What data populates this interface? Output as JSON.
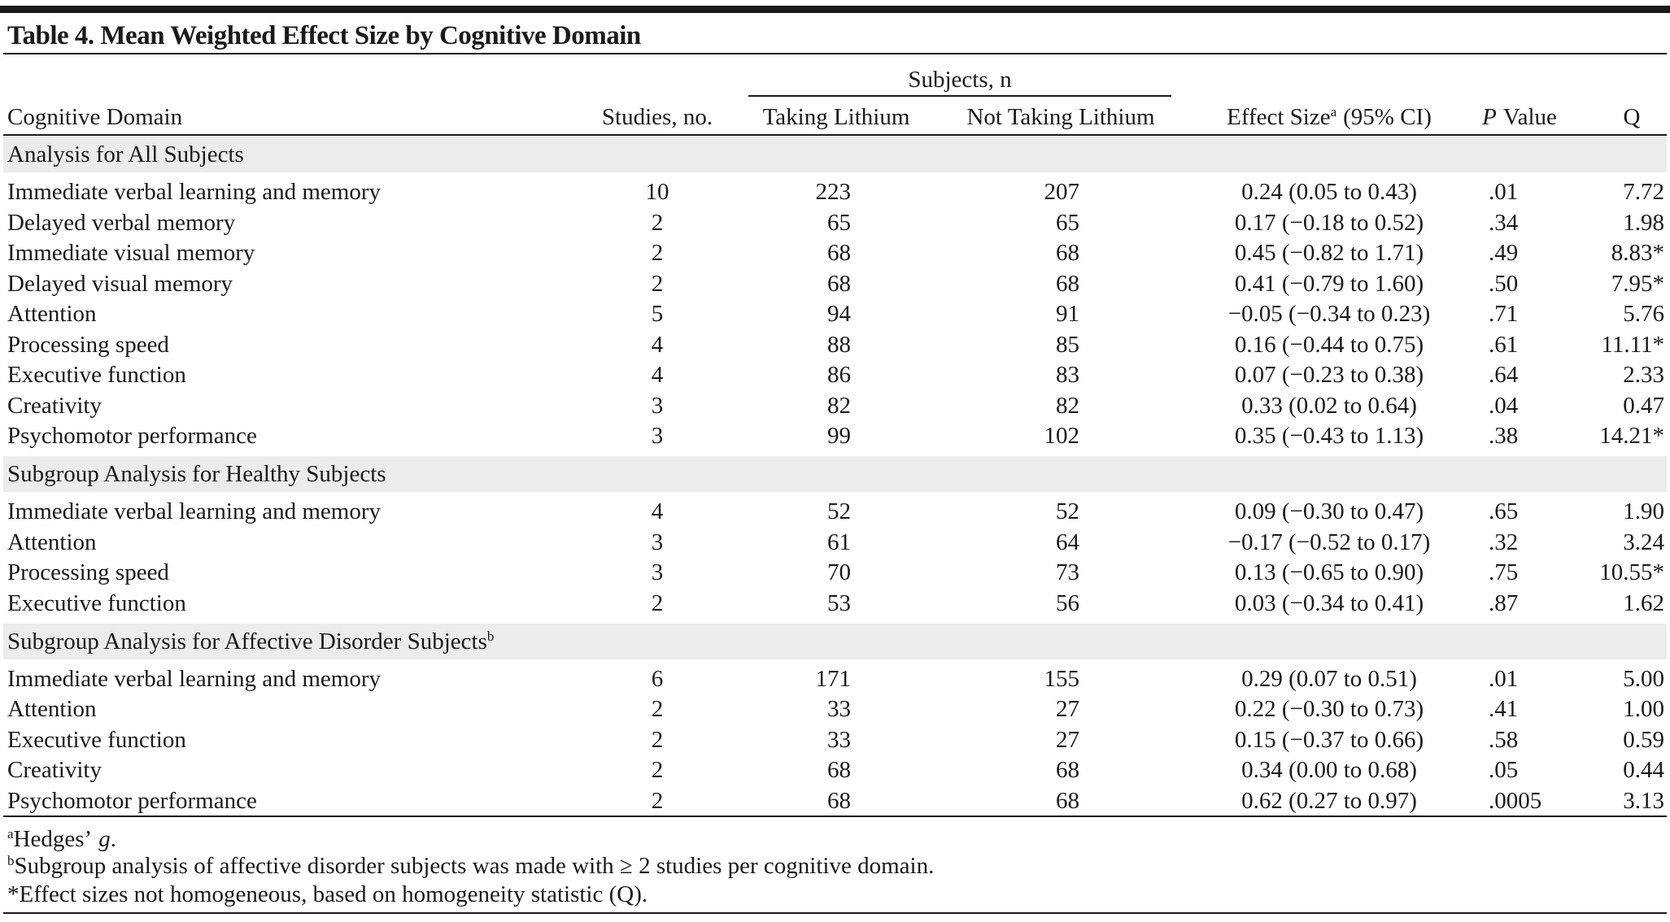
{
  "title": "Table 4. Mean Weighted Effect Size by Cognitive Domain",
  "header": {
    "domain": "Cognitive Domain",
    "studies": "Studies, no.",
    "subjects": "Subjects, n",
    "taking": "Taking Lithium",
    "not_taking": "Not Taking Lithium",
    "effect": "Effect Size",
    "effect_note": "a",
    "effect_ci": "(95% CI)",
    "p_italic": "P",
    "p": "Value",
    "q": "Q"
  },
  "sections": [
    {
      "label": "Analysis for All Subjects",
      "rows": [
        [
          "Immediate verbal learning and memory",
          10,
          223,
          207,
          "0.24 (0.05 to 0.43)",
          ".01",
          "7.72"
        ],
        [
          "Delayed verbal memory",
          2,
          65,
          65,
          "0.17 (−0.18 to 0.52)",
          ".34",
          "1.98"
        ],
        [
          "Immediate visual memory",
          2,
          68,
          68,
          "0.45 (−0.82 to 1.71)",
          ".49",
          "8.83*"
        ],
        [
          "Delayed visual memory",
          2,
          68,
          68,
          "0.41 (−0.79 to 1.60)",
          ".50",
          "7.95*"
        ],
        [
          "Attention",
          5,
          94,
          91,
          "−0.05 (−0.34 to 0.23)",
          ".71",
          "5.76"
        ],
        [
          "Processing speed",
          4,
          88,
          85,
          "0.16 (−0.44 to 0.75)",
          ".61",
          "11.11*"
        ],
        [
          "Executive function",
          4,
          86,
          83,
          "0.07 (−0.23 to 0.38)",
          ".64",
          "2.33"
        ],
        [
          "Creativity",
          3,
          82,
          82,
          "0.33 (0.02 to 0.64)",
          ".04",
          "0.47"
        ],
        [
          "Psychomotor performance",
          3,
          99,
          102,
          "0.35 (−0.43 to 1.13)",
          ".38",
          "14.21*"
        ]
      ]
    },
    {
      "label": "Subgroup Analysis for Healthy Subjects",
      "rows": [
        [
          "Immediate verbal learning and memory",
          4,
          52,
          52,
          "0.09 (−0.30 to 0.47)",
          ".65",
          "1.90"
        ],
        [
          "Attention",
          3,
          61,
          64,
          "−0.17 (−0.52 to 0.17)",
          ".32",
          "3.24"
        ],
        [
          "Processing speed",
          3,
          70,
          73,
          "0.13 (−0.65 to 0.90)",
          ".75",
          "10.55*"
        ],
        [
          "Executive function",
          2,
          53,
          56,
          "0.03 (−0.34 to 0.41)",
          ".87",
          "1.62"
        ]
      ]
    },
    {
      "label": "Subgroup Analysis for Affective Disorder Subjects",
      "note": "b",
      "rows": [
        [
          "Immediate verbal learning and memory",
          6,
          171,
          155,
          "0.29 (0.07 to 0.51)",
          ".01",
          "5.00"
        ],
        [
          "Attention",
          2,
          33,
          27,
          "0.22 (−0.30 to 0.73)",
          ".41",
          "1.00"
        ],
        [
          "Executive function",
          2,
          33,
          27,
          "0.15 (−0.37 to 0.66)",
          ".58",
          "0.59"
        ],
        [
          "Creativity",
          2,
          68,
          68,
          "0.34 (0.00 to 0.68)",
          ".05",
          "0.44"
        ],
        [
          "Psychomotor performance",
          2,
          68,
          68,
          "0.62 (0.27 to 0.97)",
          ".0005",
          "3.13"
        ]
      ]
    }
  ],
  "footnotes": [
    {
      "mark": "a",
      "text": "Hedges’",
      "italic": "g",
      "end": "."
    },
    {
      "mark": "b",
      "text": "Subgroup analysis of affective disorder subjects was made with ≥ 2 studies per cognitive domain."
    },
    {
      "text": "*Effect sizes not homogeneous, based on homogeneity statistic (Q)."
    }
  ]
}
